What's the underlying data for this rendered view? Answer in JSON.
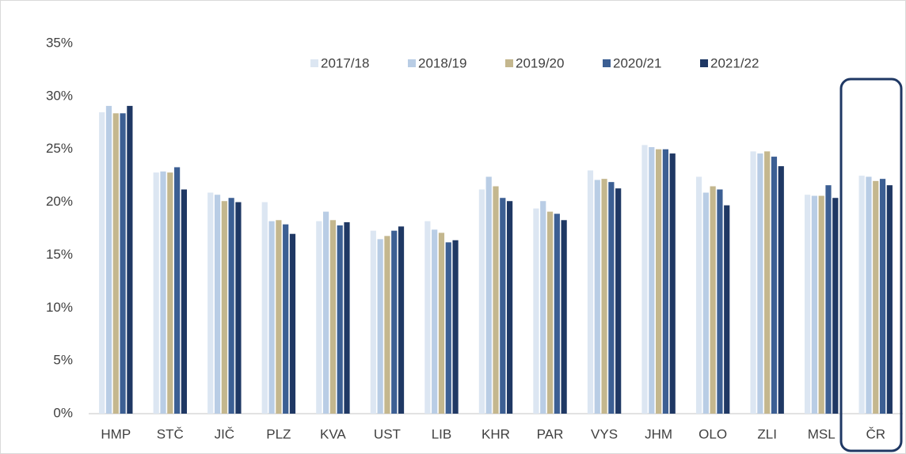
{
  "chart_data": {
    "type": "bar",
    "categories": [
      "HMP",
      "STČ",
      "JIČ",
      "PLZ",
      "KVA",
      "UST",
      "LIB",
      "KHR",
      "PAR",
      "VYS",
      "JHM",
      "OLO",
      "ZLI",
      "MSL",
      "ČR"
    ],
    "series": [
      {
        "name": "2017/18",
        "color": "#dce6f2",
        "values": [
          28.5,
          22.8,
          20.9,
          20.0,
          18.2,
          17.3,
          18.2,
          21.2,
          19.4,
          23.0,
          25.4,
          22.4,
          24.8,
          20.7,
          22.5
        ]
      },
      {
        "name": "2018/19",
        "color": "#b9cde5",
        "values": [
          29.1,
          22.9,
          20.7,
          18.2,
          19.1,
          16.5,
          17.4,
          22.4,
          20.1,
          22.1,
          25.2,
          20.9,
          24.6,
          20.6,
          22.4
        ]
      },
      {
        "name": "2019/20",
        "color": "#c4b78e",
        "values": [
          28.4,
          22.8,
          20.1,
          18.3,
          18.3,
          16.8,
          17.1,
          21.5,
          19.1,
          22.2,
          25.0,
          21.5,
          24.8,
          20.6,
          22.0
        ]
      },
      {
        "name": "2020/21",
        "color": "#3c5f93",
        "values": [
          28.4,
          23.3,
          20.4,
          17.9,
          17.8,
          17.3,
          16.2,
          20.4,
          18.9,
          21.9,
          25.0,
          21.2,
          24.3,
          21.6,
          22.2
        ]
      },
      {
        "name": "2021/22",
        "color": "#1f3864",
        "values": [
          29.1,
          21.2,
          20.0,
          17.0,
          18.1,
          17.7,
          16.4,
          20.1,
          18.3,
          21.3,
          24.6,
          19.7,
          23.4,
          20.4,
          21.6
        ]
      }
    ],
    "ylim": [
      0,
      35
    ],
    "yticks": [
      {
        "value": 0,
        "label": "0%"
      },
      {
        "value": 5,
        "label": "5%"
      },
      {
        "value": 10,
        "label": "10%"
      },
      {
        "value": 15,
        "label": "15%"
      },
      {
        "value": 20,
        "label": "20%"
      },
      {
        "value": 25,
        "label": "25%"
      },
      {
        "value": 30,
        "label": "30%"
      },
      {
        "value": 35,
        "label": "35%"
      }
    ],
    "grid": false
  }
}
